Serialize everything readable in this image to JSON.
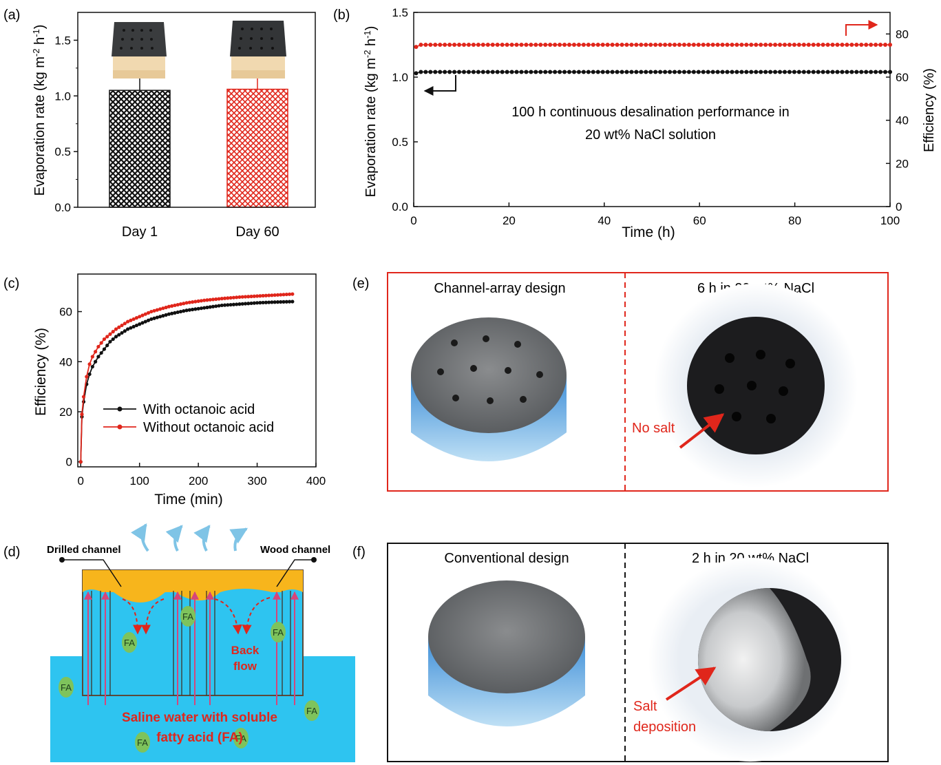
{
  "panels": {
    "a": {
      "label": "(a)"
    },
    "b": {
      "label": "(b)",
      "annotation_line1": "100 h continuous desalination performance in",
      "annotation_line2": "20 wt% NaCl solution"
    },
    "c": {
      "label": "(c)"
    },
    "d": {
      "label": "(d)",
      "drilled_channel": "Drilled channel",
      "wood_channel": "Wood channel",
      "back_flow_1": "Back",
      "back_flow_2": "flow",
      "fa": "FA",
      "water_line1": "Saline water with soluble",
      "water_line2": "fatty acid (FA)"
    },
    "e": {
      "label": "(e)",
      "left_title": "Channel-array design",
      "right_title": "6 h in 20 wt% NaCl",
      "callout": "No salt"
    },
    "f": {
      "label": "(f)",
      "left_title": "Conventional design",
      "right_title": "2 h in 20 wt% NaCl",
      "callout_line1": "Salt",
      "callout_line2": "deposition"
    }
  },
  "colors": {
    "black_series": "#111111",
    "red_series": "#e0261b",
    "water": "#2ec4f0",
    "channel_top": "#f7b51c",
    "frame_red": "#e0261b"
  },
  "chart_data": [
    {
      "type": "bar",
      "panel": "a",
      "categories": [
        "Day 1",
        "Day 60"
      ],
      "values": [
        1.05,
        1.06
      ],
      "errors": [
        0.12,
        0.15
      ],
      "ylabel": "Evaporation rate (kg m-2 h-1)",
      "ylim": [
        0,
        1.75
      ],
      "yticks": [
        "0.0",
        "0.5",
        "1.0",
        "1.5"
      ],
      "colors": [
        "#111111",
        "#e0261b"
      ]
    },
    {
      "type": "line",
      "panel": "b",
      "xlabel": "Time (h)",
      "ylabel": "Evaporation rate (kg m-2 h-1)",
      "y2label": "Efficiency (%)",
      "xlim": [
        0,
        100
      ],
      "ylim": [
        0,
        1.5
      ],
      "y2lim": [
        0,
        90
      ],
      "xticks": [
        "0",
        "20",
        "40",
        "60",
        "80",
        "100"
      ],
      "yticks": [
        "0.0",
        "0.5",
        "1.0",
        "1.5"
      ],
      "y2ticks": [
        "0",
        "20",
        "40",
        "60",
        "80"
      ],
      "series": [
        {
          "axis": "left",
          "x_start": 0.5,
          "x_end": 100,
          "first_value": 1.03,
          "value": 1.04
        },
        {
          "axis": "right",
          "x_start": 0.5,
          "x_end": 100,
          "first_value": 74,
          "value": 75
        }
      ]
    },
    {
      "type": "line",
      "panel": "c",
      "xlabel": "Time (min)",
      "ylabel": "Efficiency (%)",
      "xlim": [
        -5,
        400
      ],
      "ylim": [
        -2,
        75
      ],
      "xticks": [
        "0",
        "100",
        "200",
        "300",
        "400"
      ],
      "yticks": [
        "0",
        "20",
        "40",
        "60"
      ],
      "legend_position": "lower-right",
      "series": [
        {
          "name": "With octanoic acid",
          "x": [
            0,
            2,
            5,
            10,
            15,
            20,
            30,
            40,
            50,
            60,
            80,
            100,
            120,
            150,
            180,
            210,
            240,
            270,
            300,
            330,
            360
          ],
          "y": [
            0,
            18,
            24,
            31,
            35,
            38,
            42,
            45,
            48,
            50,
            53,
            55,
            57,
            59,
            60.5,
            61.5,
            62.5,
            63,
            63.5,
            63.8,
            64
          ]
        },
        {
          "name": "Without octanoic acid",
          "x": [
            0,
            2,
            5,
            10,
            15,
            20,
            30,
            40,
            50,
            60,
            80,
            100,
            120,
            150,
            180,
            210,
            240,
            270,
            300,
            330,
            360
          ],
          "y": [
            0,
            19,
            26,
            34,
            39,
            42,
            46,
            49,
            51,
            53,
            56,
            58,
            60,
            62,
            63.5,
            64.5,
            65.2,
            65.8,
            66.2,
            66.6,
            67
          ]
        }
      ]
    }
  ]
}
